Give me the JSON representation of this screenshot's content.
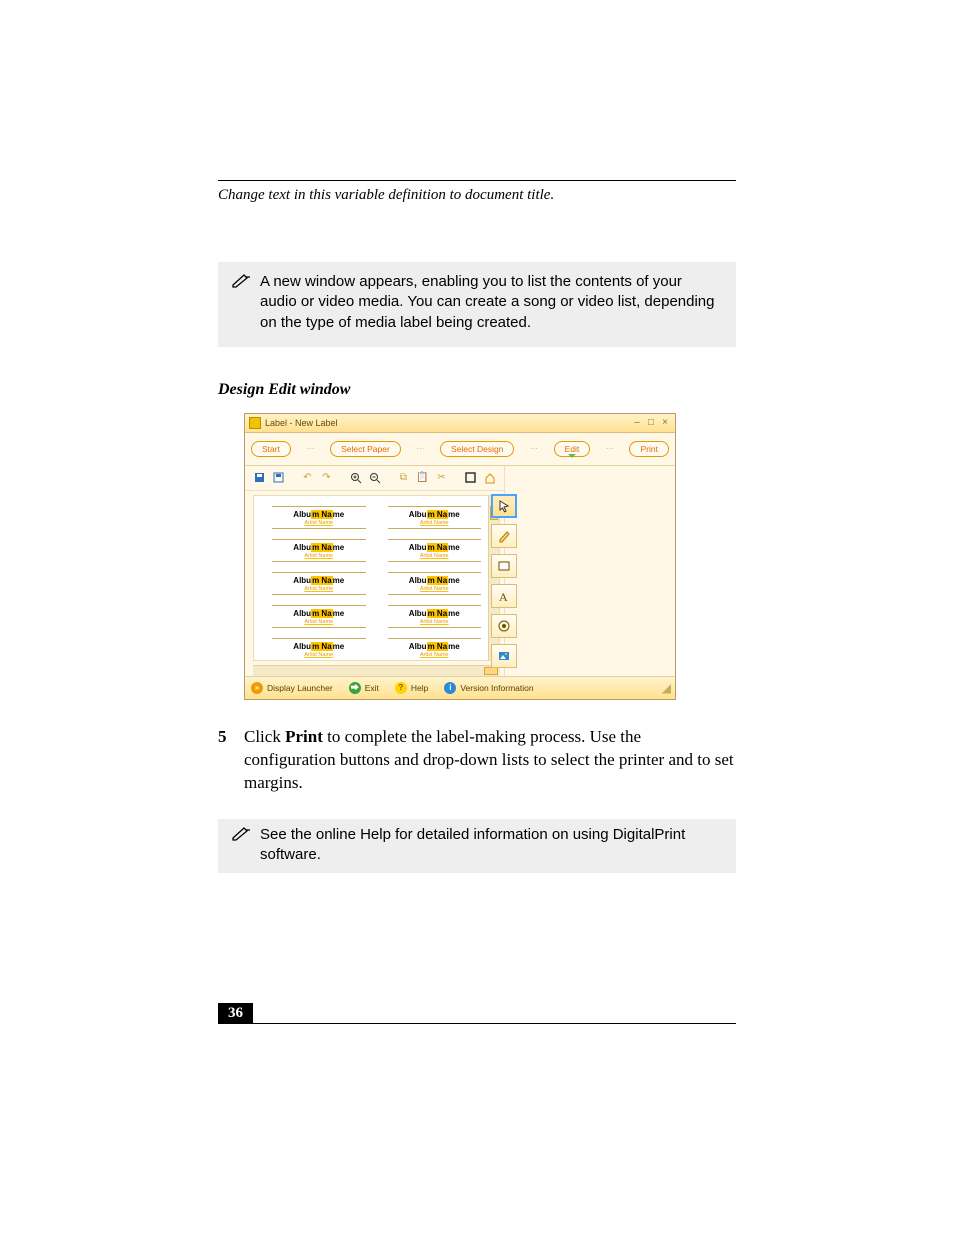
{
  "running_title": "Change text in this variable definition to document title.",
  "note1": "A new window appears, enabling you to list the contents of your audio or video media. You can create a song or video list, depending on the type of media label being created.",
  "caption": "Design Edit window",
  "window": {
    "title": "Label - New Label",
    "steps": [
      "Start",
      "Select Paper",
      "Select Design",
      "Edit",
      "Print"
    ],
    "current_step": 3,
    "label_title": "Album Name",
    "label_subtitle": "Artist Name",
    "label_rows": 5,
    "label_cols": 2,
    "top_tool_names": [
      "save-icon",
      "save-as-icon",
      "undo-icon",
      "redo-icon",
      "zoom-in-icon",
      "zoom-out-icon",
      "copy-icon",
      "paste-icon",
      "cut-icon",
      "frame-icon",
      "home-icon"
    ],
    "side_tool_names": [
      "pointer-icon",
      "pencil-icon",
      "rectangle-icon",
      "text-icon",
      "stamp-icon",
      "image-icon"
    ],
    "status": {
      "launcher": "Display Launcher",
      "exit": "Exit",
      "help": "Help",
      "version": "Version Information"
    },
    "colors": {
      "titlebar_bg_top": "#fff3cc",
      "titlebar_bg_bottom": "#ffe190",
      "border": "#b99c6a",
      "work_bg": "#fff8e6",
      "accent": "#e59a00",
      "highlight": "#ffc400"
    }
  },
  "step5_num": "5",
  "step5_pre": "Click ",
  "step5_bold": "Print",
  "step5_post": " to complete the label-making process. Use the configuration buttons and drop-down lists to select the printer and to set margins.",
  "note2": "See the online Help for detailed information on using DigitalPrint software.",
  "page_number": "36"
}
